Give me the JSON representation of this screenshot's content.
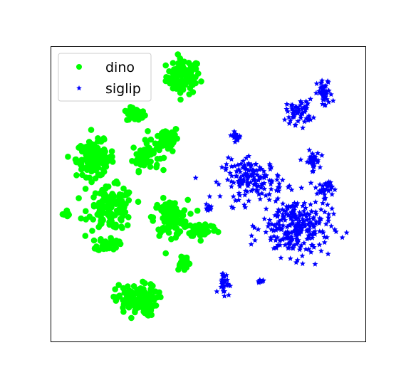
{
  "chart_data": {
    "type": "scatter",
    "title": "",
    "xlabel": "",
    "ylabel": "",
    "axis_ticks": "none",
    "grid": false,
    "legend": {
      "placement": "top-left"
    },
    "xlim": [
      0,
      100
    ],
    "ylim": [
      0,
      100
    ],
    "series": [
      {
        "name": "dino",
        "color": "#00ff00",
        "marker": "circle",
        "clusters": [
          {
            "center": [
              42,
              90
            ],
            "spread": [
              4.5,
              5
            ],
            "count": 90
          },
          {
            "center": [
              27,
              77
            ],
            "spread": [
              2.5,
              2
            ],
            "count": 35
          },
          {
            "center": [
              37,
              69
            ],
            "spread": [
              3,
              3.5
            ],
            "count": 55
          },
          {
            "center": [
              30,
              63
            ],
            "spread": [
              3.5,
              4
            ],
            "count": 60
          },
          {
            "center": [
              14,
              62
            ],
            "spread": [
              5,
              5
            ],
            "count": 130
          },
          {
            "center": [
              19,
              45
            ],
            "spread": [
              6,
              6
            ],
            "count": 130
          },
          {
            "center": [
              38,
              42
            ],
            "spread": [
              4.5,
              5
            ],
            "count": 120
          },
          {
            "center": [
              48,
              38
            ],
            "spread": [
              4,
              2.2
            ],
            "count": 50
          },
          {
            "center": [
              5,
              43
            ],
            "spread": [
              0.8,
              1.3
            ],
            "count": 14
          },
          {
            "center": [
              18,
              33
            ],
            "spread": [
              2.8,
              2
            ],
            "count": 35
          },
          {
            "center": [
              42,
              27
            ],
            "spread": [
              1.8,
              2.3
            ],
            "count": 30
          },
          {
            "center": [
              27,
              14
            ],
            "spread": [
              5.5,
              4.5
            ],
            "count": 110
          }
        ]
      },
      {
        "name": "siglip",
        "color": "#0000ff",
        "marker": "star",
        "clusters": [
          {
            "center": [
              87,
              84
            ],
            "spread": [
              2,
              4
            ],
            "count": 45
          },
          {
            "center": [
              79,
              78
            ],
            "spread": [
              3.5,
              3.5
            ],
            "count": 55
          },
          {
            "center": [
              83,
              61
            ],
            "spread": [
              2,
              3
            ],
            "count": 30
          },
          {
            "center": [
              59,
              70
            ],
            "spread": [
              1.8,
              1.2
            ],
            "count": 18
          },
          {
            "center": [
              64,
              55
            ],
            "spread": [
              8,
              5.5
            ],
            "count": 150
          },
          {
            "center": [
              87,
              52
            ],
            "spread": [
              2,
              2.5
            ],
            "count": 30
          },
          {
            "center": [
              50,
              45
            ],
            "spread": [
              1,
              1.2
            ],
            "count": 10
          },
          {
            "center": [
              78,
              39
            ],
            "spread": [
              9,
              8.5
            ],
            "count": 260
          },
          {
            "center": [
              55,
              20
            ],
            "spread": [
              1.5,
              3.3
            ],
            "count": 30
          },
          {
            "center": [
              66,
              20
            ],
            "spread": [
              1.2,
              1
            ],
            "count": 10
          }
        ]
      }
    ]
  }
}
